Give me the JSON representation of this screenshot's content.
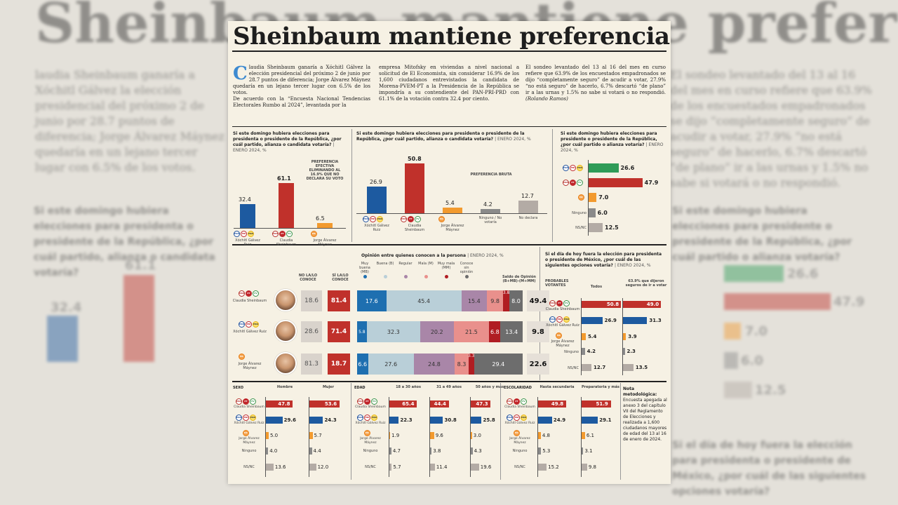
{
  "article": {
    "title": "Sheinbaum mantiene preferencia",
    "drop_cap": "C",
    "col1": "laudia Sheinbaum ganaría a Xóchitl Gálvez la elección presidencial del próximo 2 de junio por 28.7 puntos de diferencia; Jorge Álvarez Máynez quedaría en un lejano tercer lugar con 6.5% de los votos.",
    "col1b": "De acuerdo con la “Encuesta Nacional Tendencias Electorales Rumbo al 2024”, levantada por la",
    "col2": "empresa Mitofsky en viviendas a nivel nacional a solicitud de El Economista, sin considerar 16.9% de los 1,600 ciudadanos entrevistados la candidata de Morena-PVEM-PT a la Presidencia de la República se impondría a su contendiente del PAN-PRI-PRD con 61.1% de la votación contra 32.4 por ciento.",
    "col3": "El sondeo levantado del 13 al 16 del mes en curso refiere que 63.9% de los encuestados empadronados se dijo “completamente seguro” de acudir a votar, 27.9% “no está seguro” de hacerlo, 6.7% descartó “de plano” ir a las urnas y 1.5% no sabe si votará o no respondió.",
    "author": "(Rolando Ramos)"
  },
  "colors": {
    "pan": "#1d5aa0",
    "morena": "#c0312b",
    "mc": "#f29a2e",
    "grey": "#8a8a8a",
    "lightgrey": "#b3aba5",
    "green": "#2f9b57",
    "darkred": "#9c1b1f"
  },
  "party_icons": {
    "fxm": [
      "PAN",
      "PRI",
      "PRD"
    ],
    "shh": [
      "MOR",
      "PT",
      "PV"
    ],
    "mc": [
      "MC"
    ]
  },
  "chart1": {
    "question": "Si este domingo hubiera elecciones para presidenta o presidente de la República, ¿por cuál partido, alianza o candidata votaría?",
    "date": "| ENERO 2024, %",
    "note": "PREFERENCIA EFECTIVA ELIMINANDO AL 16.9% QUE NO DECLARA SU VOTO",
    "bars": [
      {
        "label": "Xóchitl Gálvez Ruiz",
        "value": "32.4",
        "v": 32.4
      },
      {
        "label": "Claudia Sheinbaum",
        "value": "61.1",
        "v": 61.1
      },
      {
        "label": "Jorge Álvarez Máynez",
        "value": "6.5",
        "v": 6.5
      }
    ]
  },
  "chart2": {
    "question": "Si este domingo hubiera elecciones para presidenta o presidente de la República, ¿por cuál partido, alianza o candidata votaría?",
    "date": "| ENERO 2024, %",
    "note": "PREFERENCIA BRUTA",
    "bars": [
      {
        "label": "Xóchitl Gálvez Ruiz",
        "value": "26.9",
        "v": 26.9
      },
      {
        "label": "Claudia Sheinbaum",
        "value": "50.8",
        "v": 50.8
      },
      {
        "label": "Jorge Álvarez Máynez",
        "value": "5.4",
        "v": 5.4
      },
      {
        "label": "Ninguno / No votaría",
        "value": "4.2",
        "v": 4.2
      },
      {
        "label": "No declara",
        "value": "12.7",
        "v": 12.7
      }
    ]
  },
  "chart3": {
    "question": "Si este domingo hubiera elecciones para presidente o presidente de la República, ¿por cuál partido o alianza votaría?",
    "date": "| ENERO 2024, %",
    "bars": [
      {
        "label": "",
        "value": "26.6",
        "v": 26.6
      },
      {
        "label": "",
        "value": "47.9",
        "v": 47.9
      },
      {
        "label": "",
        "value": "7.0",
        "v": 7.0
      },
      {
        "label": "Ninguno",
        "value": "6.0",
        "v": 6.0
      },
      {
        "label": "NS/NC",
        "value": "12.5",
        "v": 12.5
      }
    ]
  },
  "opinion": {
    "title": "Opinión entre quienes conocen a la persona",
    "date": "| ENERO 2024, %",
    "col_no": "NO LA/LO CONOCE",
    "col_si": "SÍ LA/LO CONOCE",
    "saldo": "Saldo de Opinión (B+MB)-(M+MM)",
    "legend": [
      "Muy buena (MB)",
      "Buena (B)",
      "Regular",
      "Mala (M)",
      "Muy mala (MM)",
      "Conoce sin opinión"
    ],
    "rows": [
      {
        "name": "Claudia Sheinbaum",
        "no": "18.6",
        "si": "81.4",
        "segs": [
          17.6,
          45.4,
          15.4,
          9.8,
          3.8,
          8.0
        ],
        "saldo": "49.4"
      },
      {
        "name": "Xóchitl Gálvez Ruiz",
        "no": "28.6",
        "si": "71.4",
        "segs": [
          5.8,
          32.3,
          20.2,
          21.5,
          6.8,
          13.4
        ],
        "saldo": "9.8"
      },
      {
        "name": "Jorge Álvarez Máynez",
        "no": "81.3",
        "si": "18.7",
        "segs": [
          6.6,
          27.6,
          24.8,
          8.3,
          3.3,
          29.4
        ],
        "saldo": "22.6"
      }
    ]
  },
  "probables": {
    "question": "Si el día de hoy fuera la elección para presidenta o presidente de México, ¿por cuál de las siguientes opciones votaría?",
    "date": "| ENERO 2024, %",
    "col0": "PROBABLES VOTANTES",
    "col1": "Todos",
    "col2": "63.9% que dijeron seguros de ir a votar",
    "rows": [
      {
        "label": "Claudia Sheinbaum",
        "a": "50.8",
        "b": "49.0"
      },
      {
        "label": "Xóchitl Gálvez Ruiz",
        "a": "26.9",
        "b": "31.3"
      },
      {
        "label": "Jorge Álvarez Máynez",
        "a": "5.4",
        "b": "3.9"
      },
      {
        "label": "Ninguno",
        "a": "4.2",
        "b": "2.3"
      },
      {
        "label": "NS/NC",
        "a": "12.7",
        "b": "13.5"
      }
    ]
  },
  "sexo": {
    "title": "SEXO",
    "cols": [
      "Hombre",
      "Mujer"
    ],
    "rows": [
      {
        "label": "Claudia Sheinbaum",
        "v": [
          "47.8",
          "53.6"
        ]
      },
      {
        "label": "Xóchitl Gálvez Ruiz",
        "v": [
          "29.6",
          "24.3"
        ]
      },
      {
        "label": "Jorge Álvarez Máynez",
        "v": [
          "5.0",
          "5.7"
        ]
      },
      {
        "label": "Ninguno",
        "v": [
          "4.0",
          "4.4"
        ]
      },
      {
        "label": "NS/NC",
        "v": [
          "13.6",
          "12.0"
        ]
      }
    ]
  },
  "edad": {
    "title": "EDAD",
    "cols": [
      "18 a 30 años",
      "31 a 49 años",
      "50 años y más"
    ],
    "rows": [
      {
        "label": "Claudia Sheinbaum",
        "v": [
          "65.4",
          "44.4",
          "47.3"
        ]
      },
      {
        "label": "Xóchitl Gálvez Ruiz",
        "v": [
          "22.3",
          "30.8",
          "25.8"
        ]
      },
      {
        "label": "Jorge Álvarez Máynez",
        "v": [
          "1.9",
          "9.6",
          "3.0"
        ]
      },
      {
        "label": "Ninguno",
        "v": [
          "4.7",
          "3.8",
          "4.3"
        ]
      },
      {
        "label": "NS/NC",
        "v": [
          "5.7",
          "11.4",
          "19.6"
        ]
      }
    ]
  },
  "escolaridad": {
    "title": "ESCOLARIDAD",
    "cols": [
      "Hasta secundaria",
      "Preparatoria y más"
    ],
    "rows": [
      {
        "label": "Claudia Sheinbaum",
        "v": [
          "49.8",
          "51.9"
        ]
      },
      {
        "label": "Xóchitl Gálvez Ruiz",
        "v": [
          "24.9",
          "29.1"
        ]
      },
      {
        "label": "Jorge Álvarez Máynez",
        "v": [
          "4.8",
          "6.1"
        ]
      },
      {
        "label": "Ninguno",
        "v": [
          "5.3",
          "3.1"
        ]
      },
      {
        "label": "NS/NC",
        "v": [
          "15.2",
          "9.8"
        ]
      }
    ]
  },
  "nota": {
    "title": "Nota metodológica:",
    "text": "Encuesta apegada al anexo 3 del capítulo VII del Reglamento de Elecciones y realizada a 1,600 ciudadanos mayores de edad del 13 al 16 de enero de 2024."
  }
}
